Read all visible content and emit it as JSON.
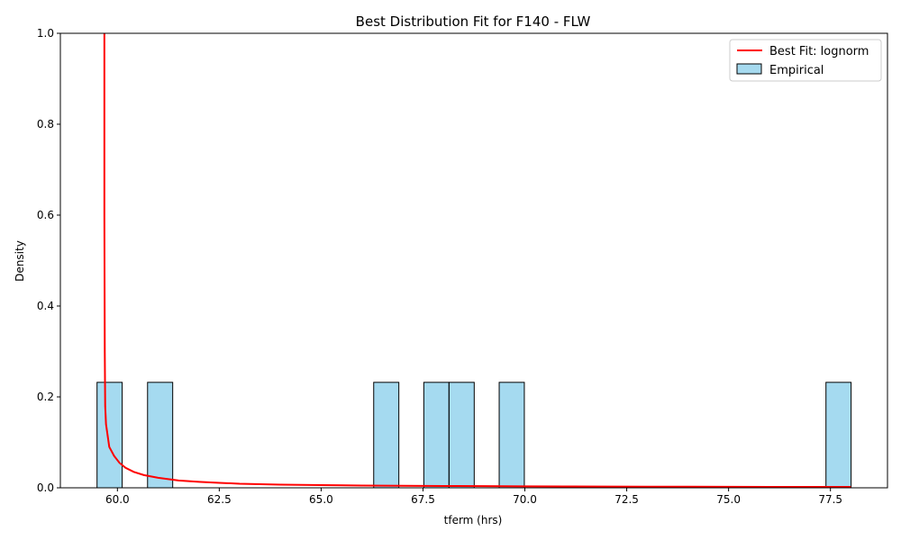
{
  "chart_data": {
    "type": "bar",
    "title": "Best Distribution Fit for F140 - FLW",
    "xlabel": "tferm (hrs)",
    "ylabel": "Density",
    "xlim": [
      58.6,
      78.9
    ],
    "ylim": [
      0,
      1.0
    ],
    "xticks": [
      "60.0",
      "62.5",
      "65.0",
      "67.5",
      "70.0",
      "72.5",
      "75.0",
      "77.5"
    ],
    "yticks": [
      "0.0",
      "0.2",
      "0.4",
      "0.6",
      "0.8",
      "1.0"
    ],
    "grid": false,
    "legend_position": "top-right",
    "histogram": {
      "name": "Empirical",
      "color": "#87ceeb",
      "bin_width": 0.617,
      "bars": [
        {
          "start": 59.5,
          "value": 0.232
        },
        {
          "start": 60.74,
          "value": 0.232
        },
        {
          "start": 66.29,
          "value": 0.232
        },
        {
          "start": 67.52,
          "value": 0.232
        },
        {
          "start": 68.14,
          "value": 0.232
        },
        {
          "start": 69.37,
          "value": 0.232
        },
        {
          "start": 77.39,
          "value": 0.232
        }
      ]
    },
    "fit_line": {
      "name": "Best Fit: lognorm",
      "color": "#ff0000",
      "x": [
        59.68,
        59.68,
        59.69,
        59.7,
        59.72,
        59.8,
        59.92,
        60.05,
        60.2,
        60.4,
        60.65,
        61.0,
        61.5,
        62.0,
        62.5,
        63.0,
        64.0,
        65.0,
        66.0,
        67.0,
        68.0,
        69.0,
        70.0,
        71.0,
        72.0,
        73.0,
        74.0,
        75.0,
        76.0,
        77.0,
        78.0
      ],
      "y": [
        1.0,
        0.6,
        0.3,
        0.18,
        0.14,
        0.09,
        0.07,
        0.055,
        0.044,
        0.035,
        0.028,
        0.022,
        0.016,
        0.013,
        0.011,
        0.009,
        0.007,
        0.006,
        0.005,
        0.0045,
        0.004,
        0.0036,
        0.0033,
        0.003,
        0.0028,
        0.0026,
        0.0024,
        0.0022,
        0.0021,
        0.002,
        0.0019
      ]
    }
  }
}
